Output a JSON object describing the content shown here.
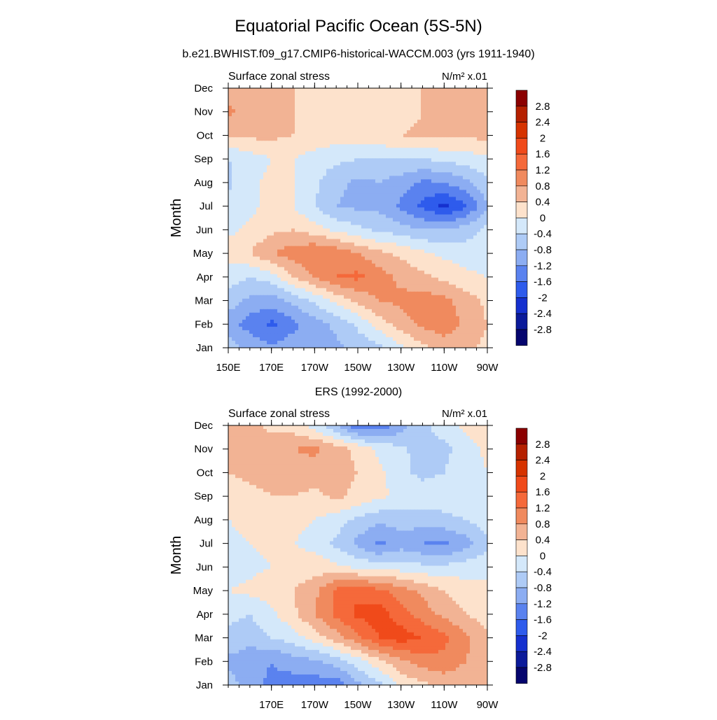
{
  "page": {
    "title": "Equatorial Pacific Ocean (5S-5N)",
    "subtitle": "b.e21.BWHIST.f09_g17.CMIP6-historical-WACCM.003 (yrs 1911-1940)",
    "panel2_title": "ERS (1992-2000)"
  },
  "colorbar": {
    "labels": [
      "2.8",
      "2.4",
      "2",
      "1.6",
      "1.2",
      "0.8",
      "0.4",
      "0",
      "-0.4",
      "-0.8",
      "-1.2",
      "-1.6",
      "-2",
      "-2.4",
      "-2.8"
    ],
    "colors": [
      "#8b0000",
      "#b52000",
      "#d63300",
      "#f04a1a",
      "#f5693a",
      "#f08a5e",
      "#f2b394",
      "#fde2cc",
      "#d4e8fa",
      "#aecbf6",
      "#8cadf2",
      "#5a82ef",
      "#2e5bec",
      "#1530cf",
      "#0b1a9a",
      "#05056e"
    ]
  },
  "chart_data": [
    {
      "type": "heatmap",
      "title": "Surface zonal stress",
      "units_label": "N/m² x.01",
      "ylabel": "Month",
      "x_ticks": [
        "150E",
        "170E",
        "170W",
        "150W",
        "130W",
        "110W",
        "90W"
      ],
      "y_ticks": [
        "Jan",
        "Feb",
        "Mar",
        "Apr",
        "May",
        "Jun",
        "Jul",
        "Aug",
        "Sep",
        "Oct",
        "Nov",
        "Dec"
      ],
      "x_range": [
        150,
        270
      ],
      "levels": [
        -2.8,
        -2.4,
        -2,
        -1.6,
        -1.2,
        -0.8,
        -0.4,
        0,
        0.4,
        0.8,
        1.2,
        1.6,
        2,
        2.4,
        2.8
      ],
      "x": [
        150,
        160,
        170,
        180,
        190,
        200,
        210,
        220,
        230,
        240,
        250,
        260,
        270
      ],
      "z": [
        [
          -0.6,
          -0.9,
          -1.1,
          -1.0,
          -0.9,
          -0.9,
          -0.7,
          -0.5,
          -0.1,
          0.3,
          0.5,
          0.5,
          0.3
        ],
        [
          -1.0,
          -1.4,
          -1.7,
          -1.3,
          -1.0,
          -0.7,
          -0.3,
          0.2,
          0.6,
          0.9,
          1.1,
          0.7,
          0.4
        ],
        [
          -0.6,
          -0.9,
          -1.0,
          -0.7,
          -0.3,
          0.1,
          0.5,
          0.8,
          0.9,
          1.0,
          0.9,
          0.6,
          0.3
        ],
        [
          -0.2,
          -0.4,
          -0.2,
          0.4,
          0.8,
          1.2,
          1.3,
          1.0,
          0.7,
          0.5,
          0.3,
          0.1,
          0.0
        ],
        [
          0.2,
          0.4,
          0.8,
          1.0,
          1.2,
          1.1,
          0.8,
          0.5,
          0.3,
          0.1,
          -0.1,
          -0.2,
          -0.2
        ],
        [
          -0.1,
          0.1,
          0.3,
          0.4,
          0.2,
          -0.1,
          -0.3,
          -0.5,
          -0.6,
          -0.8,
          -0.8,
          -0.6,
          -0.3
        ],
        [
          -0.2,
          -0.1,
          0.1,
          0.0,
          -0.4,
          -0.8,
          -0.9,
          -0.9,
          -1.3,
          -1.7,
          -2.1,
          -1.7,
          -0.8
        ],
        [
          -0.5,
          -0.1,
          0.1,
          0.0,
          -0.3,
          -0.7,
          -0.9,
          -0.8,
          -1.0,
          -1.3,
          -1.2,
          -0.9,
          -0.5
        ],
        [
          -0.4,
          -0.2,
          0.0,
          0.0,
          -0.2,
          -0.3,
          -0.4,
          -0.4,
          -0.4,
          -0.4,
          -0.3,
          -0.2,
          -0.1
        ],
        [
          0.4,
          0.5,
          0.5,
          0.4,
          0.3,
          0.2,
          0.2,
          0.3,
          0.4,
          0.5,
          0.5,
          0.5,
          0.5
        ],
        [
          0.9,
          0.6,
          0.5,
          0.4,
          0.1,
          0.0,
          0.0,
          0.0,
          0.2,
          0.4,
          0.5,
          0.6,
          0.6
        ],
        [
          0.5,
          0.5,
          0.5,
          0.4,
          0.3,
          0.2,
          0.1,
          0.1,
          0.3,
          0.4,
          0.5,
          0.5,
          0.6
        ]
      ]
    },
    {
      "type": "heatmap",
      "title": "Surface zonal stress",
      "units_label": "N/m² x.01",
      "ylabel": "Month",
      "x_ticks": [
        "170E",
        "170W",
        "150W",
        "130W",
        "110W",
        "90W"
      ],
      "y_ticks": [
        "Jan",
        "Feb",
        "Mar",
        "Apr",
        "May",
        "Jun",
        "Jul",
        "Aug",
        "Sep",
        "Oct",
        "Nov",
        "Dec"
      ],
      "x_range": [
        150,
        270
      ],
      "levels": [
        -2.8,
        -2.4,
        -2,
        -1.6,
        -1.2,
        -0.8,
        -0.4,
        0,
        0.4,
        0.8,
        1.2,
        1.6,
        2,
        2.4,
        2.8
      ],
      "x": [
        150,
        160,
        170,
        180,
        190,
        200,
        210,
        220,
        230,
        240,
        250,
        260,
        270
      ],
      "z": [
        [
          -0.6,
          -1.0,
          -1.3,
          -1.4,
          -1.4,
          -1.5,
          -0.9,
          -0.5,
          0.1,
          0.3,
          0.5,
          0.5,
          0.4
        ],
        [
          -0.9,
          -1.1,
          -1.2,
          -1.0,
          -0.9,
          -0.6,
          -0.2,
          0.3,
          0.7,
          1.0,
          1.1,
          0.8,
          0.5
        ],
        [
          -0.5,
          -0.6,
          -0.4,
          -0.2,
          0.2,
          0.6,
          1.1,
          1.6,
          1.8,
          1.6,
          1.3,
          0.9,
          0.5
        ],
        [
          -0.3,
          -0.4,
          -0.1,
          0.3,
          0.8,
          1.3,
          1.7,
          1.8,
          1.4,
          1.0,
          0.7,
          0.4,
          0.2
        ],
        [
          0.0,
          0.1,
          0.2,
          0.4,
          0.7,
          1.3,
          1.5,
          1.3,
          1.0,
          0.7,
          0.4,
          0.2,
          0.1
        ],
        [
          -0.2,
          -0.1,
          0.0,
          0.1,
          0.2,
          0.1,
          -0.1,
          -0.2,
          -0.2,
          -0.3,
          -0.3,
          -0.2,
          -0.1
        ],
        [
          -0.1,
          0.0,
          0.1,
          0.0,
          -0.1,
          -0.5,
          -0.9,
          -1.3,
          -1.0,
          -1.2,
          -1.3,
          -1.0,
          -0.5
        ],
        [
          0.0,
          0.1,
          0.2,
          0.1,
          0.0,
          -0.2,
          -0.5,
          -0.7,
          -0.6,
          -0.6,
          -0.5,
          -0.4,
          -0.2
        ],
        [
          0.2,
          0.3,
          0.4,
          0.4,
          0.3,
          0.5,
          0.3,
          0.1,
          -0.1,
          -0.2,
          -0.2,
          -0.1,
          -0.1
        ],
        [
          0.4,
          0.5,
          0.5,
          0.6,
          0.6,
          0.5,
          0.4,
          0.1,
          -0.3,
          -0.5,
          -0.4,
          -0.2,
          0.0
        ],
        [
          0.5,
          0.6,
          0.6,
          0.8,
          0.9,
          0.6,
          0.3,
          -0.1,
          -0.3,
          -0.6,
          -0.5,
          -0.2,
          0.1
        ],
        [
          0.4,
          0.5,
          0.3,
          0.2,
          -0.2,
          -0.8,
          -1.5,
          -1.5,
          -1.0,
          -0.5,
          -0.2,
          0.1,
          0.3
        ]
      ]
    }
  ]
}
